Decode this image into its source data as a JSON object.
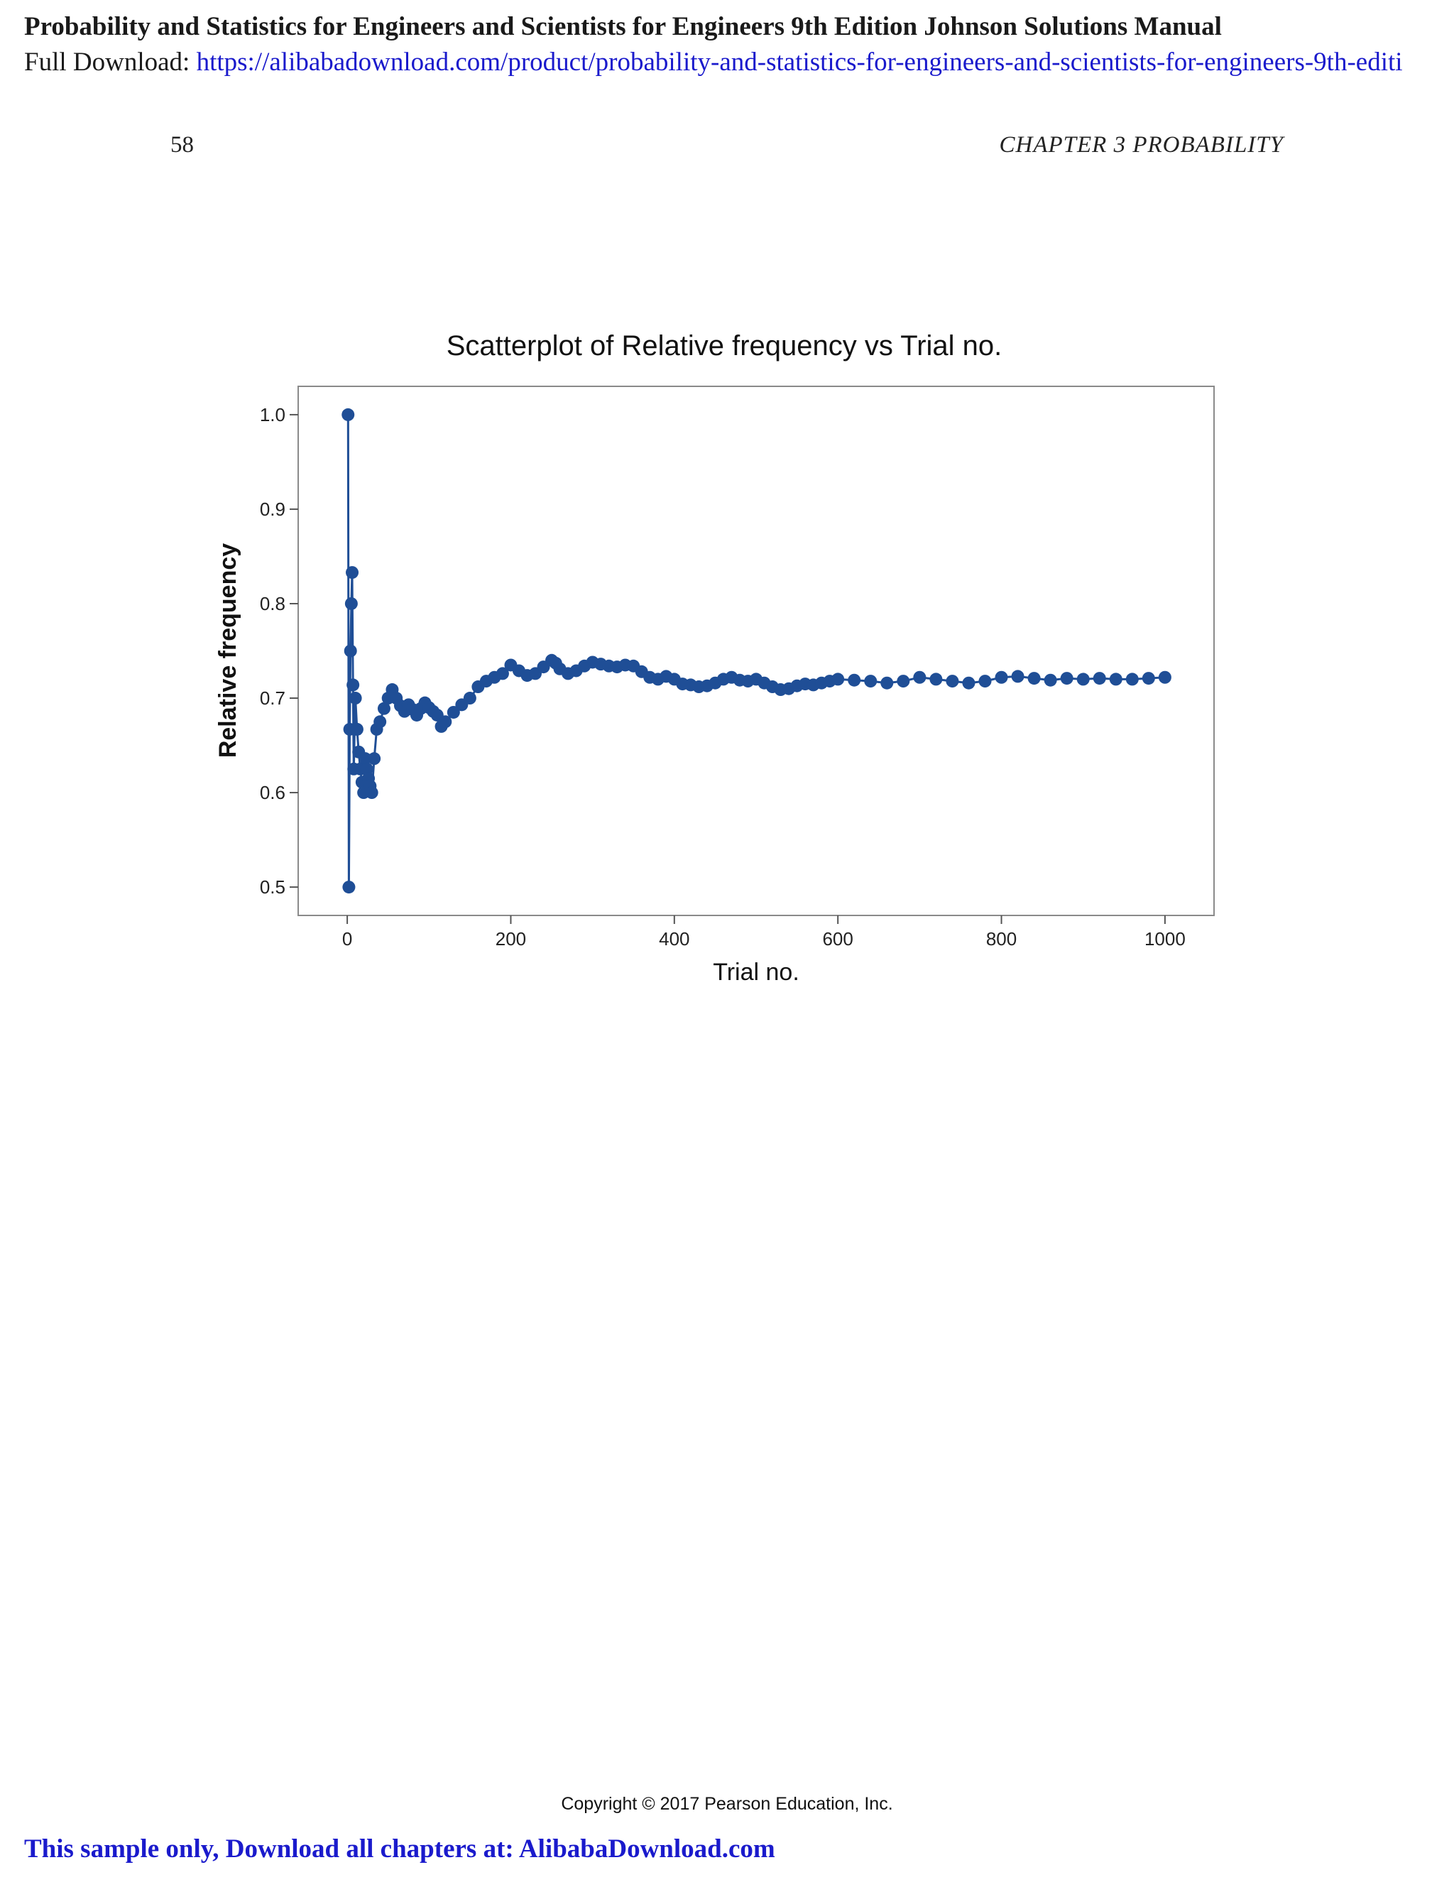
{
  "banner": {
    "title": "Probability and Statistics for Engineers and Scientists for Engineers 9th Edition Johnson Solutions Manual",
    "download_label": "Full Download: ",
    "download_url": "https://alibabadownload.com/product/probability-and-statistics-for-engineers-and-scientists-for-engineers-9th-editi"
  },
  "header": {
    "page_number": "58",
    "running_head": "CHAPTER 3 PROBABILITY"
  },
  "chart_data": {
    "type": "scatter",
    "title": "Scatterplot of Relative frequency vs Trial no.",
    "xlabel": "Trial no.",
    "ylabel": "Relative frequency",
    "xlim": [
      -60,
      1060
    ],
    "ylim": [
      0.47,
      1.03
    ],
    "xticks": [
      0,
      200,
      400,
      600,
      800,
      1000
    ],
    "xtick_labels": [
      "0",
      "200",
      "400",
      "600",
      "800",
      "1000"
    ],
    "yticks": [
      0.5,
      0.6,
      0.7,
      0.8,
      0.9,
      1.0
    ],
    "ytick_labels": [
      "0.5",
      "0.6",
      "0.7",
      "0.8",
      "0.9",
      "1.0"
    ],
    "grid": false,
    "connected": true,
    "marker_color": "#1f4e96",
    "series": [
      {
        "x": [
          1,
          2,
          3,
          4,
          5,
          6,
          7,
          8,
          9,
          10,
          12,
          14,
          16,
          18,
          20,
          22,
          24,
          26,
          28,
          30,
          33,
          36,
          40,
          45,
          50,
          55,
          60,
          65,
          70,
          75,
          80,
          85,
          90,
          95,
          100,
          105,
          110,
          115,
          120,
          130,
          140,
          150,
          160,
          170,
          180,
          190,
          200,
          210,
          220,
          230,
          240,
          250,
          255,
          260,
          270,
          280,
          290,
          300,
          310,
          320,
          330,
          340,
          350,
          360,
          370,
          380,
          390,
          400,
          410,
          420,
          430,
          440,
          450,
          460,
          470,
          480,
          490,
          500,
          510,
          520,
          530,
          540,
          550,
          560,
          570,
          580,
          590,
          600,
          620,
          640,
          660,
          680,
          700,
          720,
          740,
          760,
          780,
          800,
          820,
          840,
          860,
          880,
          900,
          920,
          940,
          960,
          980,
          1000
        ],
        "y": [
          1.0,
          0.5,
          0.667,
          0.75,
          0.8,
          0.833,
          0.714,
          0.625,
          0.667,
          0.7,
          0.667,
          0.643,
          0.625,
          0.611,
          0.6,
          0.636,
          0.625,
          0.615,
          0.607,
          0.6,
          0.636,
          0.667,
          0.675,
          0.689,
          0.7,
          0.709,
          0.7,
          0.692,
          0.686,
          0.693,
          0.688,
          0.682,
          0.689,
          0.695,
          0.69,
          0.686,
          0.682,
          0.67,
          0.675,
          0.685,
          0.693,
          0.7,
          0.712,
          0.718,
          0.722,
          0.726,
          0.735,
          0.729,
          0.724,
          0.726,
          0.733,
          0.74,
          0.737,
          0.731,
          0.726,
          0.729,
          0.734,
          0.738,
          0.736,
          0.734,
          0.733,
          0.735,
          0.734,
          0.728,
          0.722,
          0.72,
          0.723,
          0.72,
          0.715,
          0.714,
          0.712,
          0.713,
          0.716,
          0.72,
          0.722,
          0.719,
          0.718,
          0.72,
          0.716,
          0.712,
          0.709,
          0.71,
          0.713,
          0.715,
          0.714,
          0.716,
          0.718,
          0.72,
          0.719,
          0.718,
          0.716,
          0.718,
          0.722,
          0.72,
          0.718,
          0.716,
          0.718,
          0.722,
          0.723,
          0.721,
          0.719,
          0.721,
          0.72,
          0.721,
          0.72,
          0.72,
          0.721,
          0.722
        ]
      }
    ]
  },
  "footer": {
    "copyright": "Copyright © 2017 Pearson Education, Inc.",
    "sample_note": "This sample only, Download all chapters at: AlibabaDownload.com"
  }
}
